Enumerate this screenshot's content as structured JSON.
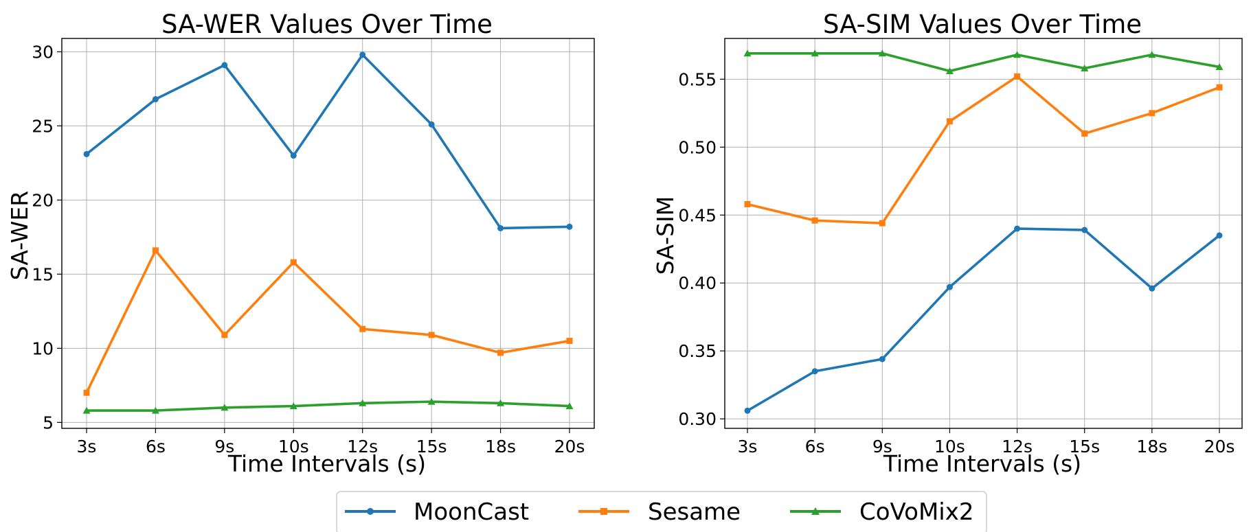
{
  "chart_data": [
    {
      "type": "line",
      "title": "SA-WER Values Over Time",
      "xlabel": "Time Intervals (s)",
      "ylabel": "SA-WER",
      "categories": [
        "3s",
        "6s",
        "9s",
        "10s",
        "12s",
        "15s",
        "18s",
        "20s"
      ],
      "ylim": [
        4.6,
        30.9
      ],
      "yticks": [
        5,
        10,
        15,
        20,
        25,
        30
      ],
      "ytick_labels": [
        "5",
        "10",
        "15",
        "20",
        "25",
        "30"
      ],
      "grid": true,
      "series": [
        {
          "name": "MoonCast",
          "values": [
            23.1,
            26.8,
            29.1,
            23.0,
            29.8,
            25.1,
            18.1,
            18.2
          ]
        },
        {
          "name": "Sesame",
          "values": [
            7.0,
            16.6,
            10.9,
            15.8,
            11.3,
            10.9,
            9.7,
            10.5
          ]
        },
        {
          "name": "CoVoMix2",
          "values": [
            5.8,
            5.8,
            6.0,
            6.1,
            6.3,
            6.4,
            6.3,
            6.1
          ]
        }
      ]
    },
    {
      "type": "line",
      "title": "SA-SIM Values Over Time",
      "xlabel": "Time Intervals (s)",
      "ylabel": "SA-SIM",
      "categories": [
        "3s",
        "6s",
        "9s",
        "10s",
        "12s",
        "15s",
        "18s",
        "20s"
      ],
      "ylim": [
        0.293,
        0.58
      ],
      "yticks": [
        0.3,
        0.35,
        0.4,
        0.45,
        0.5,
        0.55
      ],
      "ytick_labels": [
        "0.30",
        "0.35",
        "0.40",
        "0.45",
        "0.50",
        "0.55"
      ],
      "grid": true,
      "series": [
        {
          "name": "MoonCast",
          "values": [
            0.306,
            0.335,
            0.344,
            0.397,
            0.44,
            0.439,
            0.396,
            0.435
          ]
        },
        {
          "name": "Sesame",
          "values": [
            0.458,
            0.446,
            0.444,
            0.519,
            0.552,
            0.51,
            0.525,
            0.544
          ]
        },
        {
          "name": "CoVoMix2",
          "values": [
            0.569,
            0.569,
            0.569,
            0.556,
            0.568,
            0.558,
            0.568,
            0.559
          ]
        }
      ]
    }
  ],
  "legend": {
    "items": [
      {
        "label": "MoonCast",
        "color": "#1f77b4",
        "marker": "circle"
      },
      {
        "label": "Sesame",
        "color": "#ff7f0e",
        "marker": "square"
      },
      {
        "label": "CoVoMix2",
        "color": "#2ca02c",
        "marker": "triangle"
      }
    ]
  },
  "colors": {
    "MoonCast": "#1f77b4",
    "Sesame": "#ff7f0e",
    "CoVoMix2": "#2ca02c",
    "grid": "#b0b0b0",
    "frame": "#000000"
  }
}
